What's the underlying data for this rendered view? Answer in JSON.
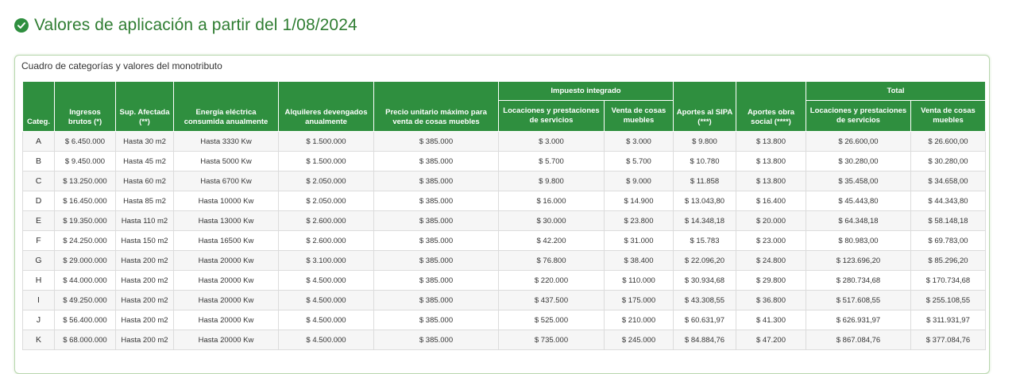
{
  "page": {
    "title": "Valores de aplicación a partir del 1/08/2024",
    "title_icon": "check-circle-icon",
    "accent_color": "#2f8f3f"
  },
  "panel": {
    "title": "Cuadro de categorías y valores del monotributo"
  },
  "table": {
    "headers": {
      "categ": "Categ.",
      "ingresos": "Ingresos brutos (*)",
      "sup": "Sup. Afectada (**)",
      "energia": "Energía eléctrica consumida anualmente",
      "alquileres": "Alquileres devengados anualmente",
      "precio": "Precio unitario máximo para venta de cosas muebles",
      "impuesto_group": "Impuesto integrado",
      "imp_locaciones": "Locaciones y prestaciones de servicios",
      "imp_venta": "Venta de cosas muebles",
      "sipa": "Aportes al SIPA (***)",
      "obra": "Aportes obra social (****)",
      "total_group": "Total",
      "tot_locaciones": "Locaciones y prestaciones de servicios",
      "tot_venta": "Venta de cosas muebles"
    },
    "rows": [
      {
        "categ": "A",
        "ingresos": "$ 6.450.000",
        "sup": "Hasta 30 m2",
        "energia": "Hasta 3330 Kw",
        "alquileres": "$ 1.500.000",
        "precio": "$ 385.000",
        "imp_loc": "$ 3.000",
        "imp_venta": "$ 3.000",
        "sipa": "$ 9.800",
        "obra": "$ 13.800",
        "tot_loc": "$ 26.600,00",
        "tot_venta": "$ 26.600,00"
      },
      {
        "categ": "B",
        "ingresos": "$ 9.450.000",
        "sup": "Hasta 45 m2",
        "energia": "Hasta 5000 Kw",
        "alquileres": "$ 1.500.000",
        "precio": "$ 385.000",
        "imp_loc": "$ 5.700",
        "imp_venta": "$ 5.700",
        "sipa": "$ 10.780",
        "obra": "$ 13.800",
        "tot_loc": "$ 30.280,00",
        "tot_venta": "$ 30.280,00"
      },
      {
        "categ": "C",
        "ingresos": "$ 13.250.000",
        "sup": "Hasta 60 m2",
        "energia": "Hasta 6700 Kw",
        "alquileres": "$ 2.050.000",
        "precio": "$ 385.000",
        "imp_loc": "$ 9.800",
        "imp_venta": "$ 9.000",
        "sipa": "$ 11.858",
        "obra": "$ 13.800",
        "tot_loc": "$ 35.458,00",
        "tot_venta": "$ 34.658,00"
      },
      {
        "categ": "D",
        "ingresos": "$ 16.450.000",
        "sup": "Hasta 85 m2",
        "energia": "Hasta 10000 Kw",
        "alquileres": "$ 2.050.000",
        "precio": "$ 385.000",
        "imp_loc": "$ 16.000",
        "imp_venta": "$ 14.900",
        "sipa": "$ 13.043,80",
        "obra": "$ 16.400",
        "tot_loc": "$ 45.443,80",
        "tot_venta": "$ 44.343,80"
      },
      {
        "categ": "E",
        "ingresos": "$ 19.350.000",
        "sup": "Hasta 110 m2",
        "energia": "Hasta 13000 Kw",
        "alquileres": "$ 2.600.000",
        "precio": "$ 385.000",
        "imp_loc": "$ 30.000",
        "imp_venta": "$ 23.800",
        "sipa": "$ 14.348,18",
        "obra": "$ 20.000",
        "tot_loc": "$ 64.348,18",
        "tot_venta": "$ 58.148,18"
      },
      {
        "categ": "F",
        "ingresos": "$ 24.250.000",
        "sup": "Hasta 150 m2",
        "energia": "Hasta 16500 Kw",
        "alquileres": "$ 2.600.000",
        "precio": "$ 385.000",
        "imp_loc": "$ 42.200",
        "imp_venta": "$ 31.000",
        "sipa": "$ 15.783",
        "obra": "$ 23.000",
        "tot_loc": "$ 80.983,00",
        "tot_venta": "$ 69.783,00"
      },
      {
        "categ": "G",
        "ingresos": "$ 29.000.000",
        "sup": "Hasta 200 m2",
        "energia": "Hasta 20000 Kw",
        "alquileres": "$ 3.100.000",
        "precio": "$ 385.000",
        "imp_loc": "$ 76.800",
        "imp_venta": "$ 38.400",
        "sipa": "$ 22.096,20",
        "obra": "$ 24.800",
        "tot_loc": "$ 123.696,20",
        "tot_venta": "$ 85.296,20"
      },
      {
        "categ": "H",
        "ingresos": "$ 44.000.000",
        "sup": "Hasta 200 m2",
        "energia": "Hasta 20000 Kw",
        "alquileres": "$ 4.500.000",
        "precio": "$ 385.000",
        "imp_loc": "$ 220.000",
        "imp_venta": "$ 110.000",
        "sipa": "$ 30.934,68",
        "obra": "$ 29.800",
        "tot_loc": "$ 280.734,68",
        "tot_venta": "$ 170.734,68"
      },
      {
        "categ": "I",
        "ingresos": "$ 49.250.000",
        "sup": "Hasta 200 m2",
        "energia": "Hasta 20000 Kw",
        "alquileres": "$ 4.500.000",
        "precio": "$ 385.000",
        "imp_loc": "$ 437.500",
        "imp_venta": "$ 175.000",
        "sipa": "$ 43.308,55",
        "obra": "$ 36.800",
        "tot_loc": "$ 517.608,55",
        "tot_venta": "$ 255.108,55"
      },
      {
        "categ": "J",
        "ingresos": "$ 56.400.000",
        "sup": "Hasta 200 m2",
        "energia": "Hasta 20000 Kw",
        "alquileres": "$ 4.500.000",
        "precio": "$ 385.000",
        "imp_loc": "$ 525.000",
        "imp_venta": "$ 210.000",
        "sipa": "$ 60.631,97",
        "obra": "$ 41.300",
        "tot_loc": "$ 626.931,97",
        "tot_venta": "$ 311.931,97"
      },
      {
        "categ": "K",
        "ingresos": "$ 68.000.000",
        "sup": "Hasta 200 m2",
        "energia": "Hasta 20000 Kw",
        "alquileres": "$ 4.500.000",
        "precio": "$ 385.000",
        "imp_loc": "$ 735.000",
        "imp_venta": "$ 245.000",
        "sipa": "$ 84.884,76",
        "obra": "$ 47.200",
        "tot_loc": "$ 867.084,76",
        "tot_venta": "$ 377.084,76"
      }
    ]
  }
}
